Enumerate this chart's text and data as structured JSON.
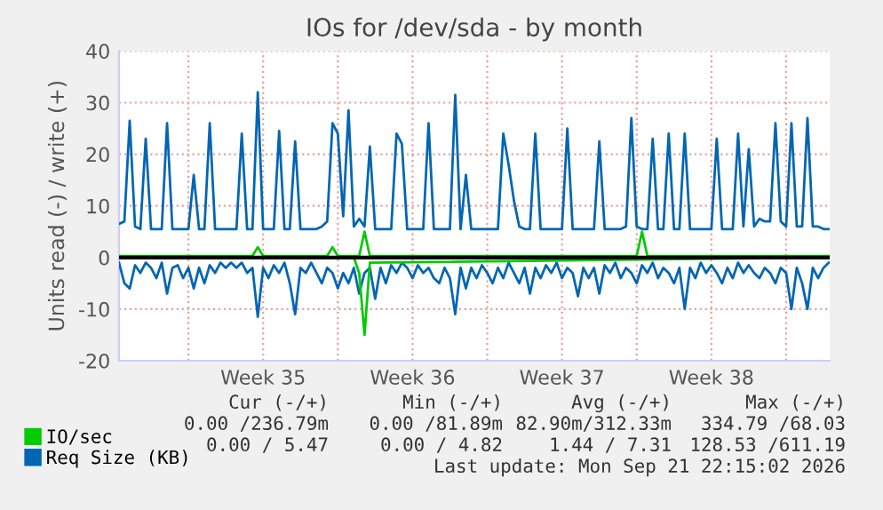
{
  "chart_data": {
    "type": "line",
    "title": "IOs for /dev/sda - by month",
    "ylabel": "Units read (-) / write (+)",
    "xlim": [
      "2026-08-19T12:00",
      "2026-09-21T19:00"
    ],
    "ylim": [
      -20,
      40
    ],
    "xticks": [
      {
        "value": "2026-08-22T18:00",
        "label": null
      },
      {
        "value": "2026-08-26T06:00",
        "label": "Week 35"
      },
      {
        "value": "2026-08-29T18:00",
        "label": null
      },
      {
        "value": "2026-09-02T06:00",
        "label": "Week 36"
      },
      {
        "value": "2026-09-05T18:00",
        "label": null
      },
      {
        "value": "2026-09-09T06:00",
        "label": "Week 37"
      },
      {
        "value": "2026-09-12T18:00",
        "label": null
      },
      {
        "value": "2026-09-16T06:00",
        "label": "Week 38"
      },
      {
        "value": "2026-09-19T18:00",
        "label": null
      }
    ],
    "yticks": [
      -20,
      -10,
      0,
      10,
      20,
      30,
      40
    ],
    "grid": true,
    "legend": "bottom left",
    "line_style": "solid",
    "ref_lines": [
      {
        "axis": "y",
        "value": 0,
        "color": "#000000"
      }
    ],
    "x": [
      "2026-08-19T12:00",
      "2026-08-19T18:00",
      "2026-08-20T00:00",
      "2026-08-20T06:00",
      "2026-08-20T12:00",
      "2026-08-20T18:00",
      "2026-08-21T00:00",
      "2026-08-21T06:00",
      "2026-08-21T12:00",
      "2026-08-21T18:00",
      "2026-08-22T00:00",
      "2026-08-22T06:00",
      "2026-08-22T12:00",
      "2026-08-22T18:00",
      "2026-08-23T00:00",
      "2026-08-23T06:00",
      "2026-08-23T12:00",
      "2026-08-23T18:00",
      "2026-08-24T00:00",
      "2026-08-24T06:00",
      "2026-08-24T12:00",
      "2026-08-24T18:00",
      "2026-08-25T00:00",
      "2026-08-25T06:00",
      "2026-08-25T12:00",
      "2026-08-25T18:00",
      "2026-08-26T00:00",
      "2026-08-26T06:00",
      "2026-08-26T12:00",
      "2026-08-26T18:00",
      "2026-08-27T00:00",
      "2026-08-27T06:00",
      "2026-08-27T12:00",
      "2026-08-27T18:00",
      "2026-08-28T00:00",
      "2026-08-28T06:00",
      "2026-08-28T12:00",
      "2026-08-28T18:00",
      "2026-08-29T00:00",
      "2026-08-29T06:00",
      "2026-08-29T12:00",
      "2026-08-29T18:00",
      "2026-08-30T00:00",
      "2026-08-30T06:00",
      "2026-08-30T12:00",
      "2026-08-30T18:00",
      "2026-08-31T00:00",
      "2026-08-31T06:00",
      "2026-08-31T12:00",
      "2026-08-31T18:00",
      "2026-09-01T00:00",
      "2026-09-01T06:00",
      "2026-09-01T12:00",
      "2026-09-01T18:00",
      "2026-09-02T00:00",
      "2026-09-02T06:00",
      "2026-09-02T12:00",
      "2026-09-02T18:00",
      "2026-09-03T00:00",
      "2026-09-03T06:00",
      "2026-09-03T12:00",
      "2026-09-03T18:00",
      "2026-09-04T00:00",
      "2026-09-04T06:00",
      "2026-09-04T12:00",
      "2026-09-04T18:00",
      "2026-09-05T00:00",
      "2026-09-05T06:00",
      "2026-09-05T12:00",
      "2026-09-05T18:00",
      "2026-09-06T00:00",
      "2026-09-06T06:00",
      "2026-09-06T12:00",
      "2026-09-06T18:00",
      "2026-09-07T00:00",
      "2026-09-07T06:00",
      "2026-09-07T12:00",
      "2026-09-07T18:00",
      "2026-09-08T00:00",
      "2026-09-08T06:00",
      "2026-09-08T12:00",
      "2026-09-08T18:00",
      "2026-09-09T00:00",
      "2026-09-09T06:00",
      "2026-09-09T12:00",
      "2026-09-09T18:00",
      "2026-09-10T00:00",
      "2026-09-10T06:00",
      "2026-09-10T12:00",
      "2026-09-10T18:00",
      "2026-09-11T00:00",
      "2026-09-11T06:00",
      "2026-09-11T12:00",
      "2026-09-11T18:00",
      "2026-09-12T00:00",
      "2026-09-12T06:00",
      "2026-09-12T12:00",
      "2026-09-12T18:00",
      "2026-09-13T00:00",
      "2026-09-13T06:00",
      "2026-09-13T12:00",
      "2026-09-13T18:00",
      "2026-09-14T00:00",
      "2026-09-14T06:00",
      "2026-09-14T12:00",
      "2026-09-14T18:00",
      "2026-09-15T00:00",
      "2026-09-15T06:00",
      "2026-09-15T12:00",
      "2026-09-15T18:00",
      "2026-09-16T00:00",
      "2026-09-16T06:00",
      "2026-09-16T12:00",
      "2026-09-16T18:00",
      "2026-09-17T00:00",
      "2026-09-17T06:00",
      "2026-09-17T12:00",
      "2026-09-17T18:00",
      "2026-09-18T00:00",
      "2026-09-18T06:00",
      "2026-09-18T12:00",
      "2026-09-18T18:00",
      "2026-09-19T00:00",
      "2026-09-19T06:00",
      "2026-09-19T12:00",
      "2026-09-19T18:00",
      "2026-09-20T00:00",
      "2026-09-20T06:00",
      "2026-09-20T12:00",
      "2026-09-20T18:00",
      "2026-09-21T00:00",
      "2026-09-21T06:00",
      "2026-09-21T12:00",
      "2026-09-21T18:00"
    ],
    "series": [
      {
        "name": "Req Size (KB)",
        "color": "#0066b3",
        "values": [
          6.5,
          7,
          26.5,
          6,
          5.5,
          23,
          5.5,
          5.5,
          5.5,
          26,
          5.5,
          5.5,
          5.5,
          5.5,
          16,
          5.5,
          5.5,
          26,
          5.5,
          5.5,
          5.5,
          5.5,
          5.5,
          24,
          5.5,
          5.5,
          32,
          5.5,
          5.5,
          5.5,
          24.5,
          5.5,
          5.5,
          22.5,
          5.5,
          5.5,
          5.5,
          5.5,
          6,
          7,
          26,
          24,
          8,
          28.5,
          6,
          7.5,
          6,
          21.5,
          5.5,
          5.5,
          5.5,
          5.5,
          24,
          22,
          5.5,
          5.5,
          5.5,
          5.5,
          26,
          5.5,
          5.5,
          5.5,
          5.5,
          31.5,
          5.5,
          16,
          5.5,
          5.5,
          5.5,
          5.5,
          5.5,
          5.5,
          24,
          18,
          11,
          6,
          5.5,
          5.5,
          24,
          5.5,
          5.5,
          5.5,
          5.5,
          5.5,
          25,
          5.5,
          5.5,
          5.5,
          5.5,
          5.5,
          22.5,
          5.5,
          5.5,
          5.5,
          5.5,
          6,
          27,
          6,
          5.5,
          5.5,
          23,
          5.5,
          5.5,
          24,
          5.5,
          5.5,
          24,
          5.5,
          5.5,
          5.5,
          5.5,
          5.5,
          23,
          5.5,
          5.5,
          5.5,
          24,
          6,
          21,
          6,
          7.5,
          7,
          7,
          26,
          7,
          6,
          26,
          6,
          6,
          27,
          6,
          6,
          5.5,
          5.5
        ]
      },
      {
        "color": "#0066b3",
        "values": [
          -1,
          -5,
          -6,
          -1.5,
          -3,
          -1,
          -2,
          -4,
          -1,
          -7,
          -2,
          -1.5,
          -4,
          -2,
          -6,
          -2,
          -5,
          -1.5,
          -3,
          -1,
          -2,
          -1,
          -2,
          -1,
          -3,
          -2,
          -11.5,
          -2,
          -4,
          -1.5,
          -3,
          -1,
          -5,
          -11,
          -2,
          -3,
          -1,
          -3,
          -5,
          -2,
          -3,
          -6,
          -3,
          -5,
          -2,
          -7,
          -3,
          -2,
          -8,
          -2,
          -5,
          -1.5,
          -3,
          -1,
          -2,
          -4,
          -1.5,
          -3,
          -2,
          -4,
          -5,
          -2,
          -4,
          -11,
          -2,
          -6,
          -2,
          -4,
          -1.5,
          -3,
          -5,
          -2,
          -4,
          -1,
          -3,
          -5,
          -2,
          -7,
          -2,
          -4,
          -1.5,
          -3,
          -1,
          -4,
          -2,
          -3,
          -7.5,
          -2,
          -4,
          -2,
          -7,
          -1.5,
          -3,
          -1,
          -4,
          -2,
          -3,
          -5,
          -1.5,
          -3,
          -1,
          -4,
          -2,
          -3,
          -5,
          -2,
          -10,
          -2,
          -4,
          -1,
          -3,
          -1.5,
          -3,
          -5,
          -2,
          -4,
          -1,
          -3,
          -1.5,
          -3,
          -4,
          -2,
          -3,
          -5,
          -2,
          -3,
          -10,
          -2,
          -5,
          -10,
          -2,
          -4,
          -2,
          -1
        ]
      },
      {
        "name": "IO/sec",
        "color": "#00cc00",
        "x": [
          "2026-08-19T12:00",
          "2026-08-25T18:00",
          "2026-08-26T00:00",
          "2026-08-26T06:00",
          "2026-08-29T06:00",
          "2026-08-29T12:00",
          "2026-08-29T18:00",
          "2026-08-30T18:00",
          "2026-08-31T00:00",
          "2026-08-31T06:00",
          "2026-09-12T18:00",
          "2026-09-13T00:00",
          "2026-09-13T06:00",
          "2026-09-21T18:00"
        ],
        "values": [
          0.3,
          0.3,
          2,
          0.3,
          0.3,
          2,
          0.3,
          0.3,
          5,
          0.3,
          0.3,
          5,
          0.3,
          0.3
        ]
      },
      {
        "color": "#00cc00",
        "x": [
          "2026-08-19T12:00",
          "2026-08-30T12:00",
          "2026-08-30T18:00",
          "2026-08-31T00:00",
          "2026-08-31T06:00",
          "2026-09-21T18:00"
        ],
        "values": [
          0,
          0,
          -3,
          -15,
          -1,
          0
        ]
      }
    ],
    "annotations": [
      "Cur (-/+)",
      "Min (-/+)",
      "Avg (-/+)",
      "Max (-/+)",
      "0.00 /236.79m",
      "0.00 /81.89m",
      "82.90m/312.33m",
      "334.79 /68.03",
      "0.00 / 5.47",
      "0.00 / 4.82",
      "1.44 / 7.31",
      "128.53 /611.19",
      "Last update: Mon Sep 21 22:15:02 2026"
    ]
  }
}
